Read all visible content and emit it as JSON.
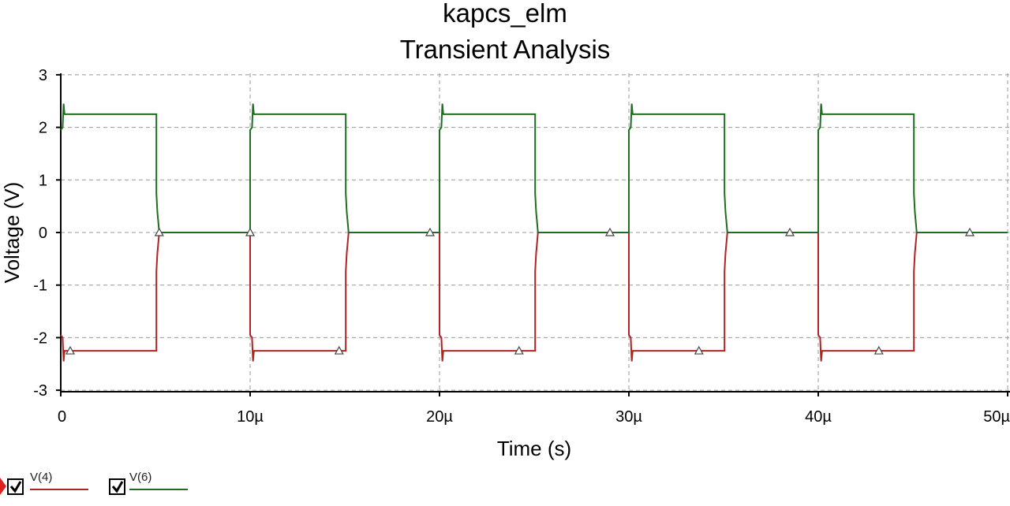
{
  "chart_data": {
    "type": "line",
    "title": "kapcs_elm",
    "subtitle": "Transient Analysis",
    "xlabel": "Time (s)",
    "ylabel": "Voltage (V)",
    "xlim": [
      0,
      50
    ],
    "x_unit": "µs",
    "ylim": [
      -3.2,
      3.2
    ],
    "xticks": [
      0,
      10,
      20,
      30,
      40,
      50
    ],
    "xtick_labels": [
      "0",
      "10µ",
      "20µ",
      "30µ",
      "40µ",
      "50µ"
    ],
    "yticks": [
      3,
      2,
      1,
      0,
      -1,
      -2,
      -3
    ],
    "ytick_labels": [
      "3",
      "2",
      "1",
      "0",
      "-1",
      "-2",
      "-3"
    ],
    "grid": true,
    "legend_placement": "bottom-left",
    "series": [
      {
        "name": "V(4)",
        "color": "#b22222",
        "checked": true,
        "points": [
          [
            0,
            -1.95
          ],
          [
            0.1,
            -2.0
          ],
          [
            0.15,
            -2.45
          ],
          [
            0.2,
            -2.25
          ],
          [
            5.05,
            -2.25
          ],
          [
            5.05,
            -0.75
          ],
          [
            5.1,
            -0.4
          ],
          [
            5.2,
            0
          ],
          [
            10,
            0
          ],
          [
            10,
            -1.95
          ],
          [
            10.1,
            -2.0
          ],
          [
            10.15,
            -2.45
          ],
          [
            10.2,
            -2.25
          ],
          [
            15.05,
            -2.25
          ],
          [
            15.05,
            -0.75
          ],
          [
            15.1,
            -0.4
          ],
          [
            15.2,
            0
          ],
          [
            20,
            0
          ],
          [
            20,
            -1.95
          ],
          [
            20.1,
            -2.0
          ],
          [
            20.15,
            -2.45
          ],
          [
            20.2,
            -2.25
          ],
          [
            25.05,
            -2.25
          ],
          [
            25.05,
            -0.75
          ],
          [
            25.1,
            -0.4
          ],
          [
            25.2,
            0
          ],
          [
            30,
            0
          ],
          [
            30,
            -1.95
          ],
          [
            30.1,
            -2.0
          ],
          [
            30.15,
            -2.45
          ],
          [
            30.2,
            -2.25
          ],
          [
            35.05,
            -2.25
          ],
          [
            35.05,
            -0.75
          ],
          [
            35.1,
            -0.4
          ],
          [
            35.2,
            0
          ],
          [
            40,
            0
          ],
          [
            40,
            -1.95
          ],
          [
            40.1,
            -2.0
          ],
          [
            40.15,
            -2.45
          ],
          [
            40.2,
            -2.25
          ],
          [
            45.05,
            -2.25
          ],
          [
            45.05,
            -0.75
          ],
          [
            45.1,
            -0.4
          ],
          [
            45.2,
            0
          ],
          [
            50,
            0
          ]
        ],
        "markers": [
          [
            0.5,
            -2.25
          ],
          [
            14.7,
            -2.25
          ],
          [
            24.2,
            -2.25
          ],
          [
            33.7,
            -2.25
          ],
          [
            43.2,
            -2.25
          ]
        ]
      },
      {
        "name": "V(6)",
        "color": "#1f6e1f",
        "checked": true,
        "points": [
          [
            0,
            1.95
          ],
          [
            0.1,
            2.0
          ],
          [
            0.15,
            2.45
          ],
          [
            0.2,
            2.25
          ],
          [
            5.05,
            2.25
          ],
          [
            5.05,
            0.75
          ],
          [
            5.1,
            0.4
          ],
          [
            5.2,
            0
          ],
          [
            10,
            0
          ],
          [
            10,
            1.95
          ],
          [
            10.1,
            2.0
          ],
          [
            10.15,
            2.45
          ],
          [
            10.2,
            2.25
          ],
          [
            15.05,
            2.25
          ],
          [
            15.05,
            0.75
          ],
          [
            15.1,
            0.4
          ],
          [
            15.2,
            0
          ],
          [
            20,
            0
          ],
          [
            20,
            1.95
          ],
          [
            20.1,
            2.0
          ],
          [
            20.15,
            2.45
          ],
          [
            20.2,
            2.25
          ],
          [
            25.05,
            2.25
          ],
          [
            25.05,
            0.75
          ],
          [
            25.1,
            0.4
          ],
          [
            25.2,
            0
          ],
          [
            30,
            0
          ],
          [
            30,
            1.95
          ],
          [
            30.1,
            2.0
          ],
          [
            30.15,
            2.45
          ],
          [
            30.2,
            2.25
          ],
          [
            35.05,
            2.25
          ],
          [
            35.05,
            0.75
          ],
          [
            35.1,
            0.4
          ],
          [
            35.2,
            0
          ],
          [
            40,
            0
          ],
          [
            40,
            1.95
          ],
          [
            40.1,
            2.0
          ],
          [
            40.15,
            2.45
          ],
          [
            40.2,
            2.25
          ],
          [
            45.05,
            2.25
          ],
          [
            45.05,
            0.75
          ],
          [
            45.1,
            0.4
          ],
          [
            45.2,
            0
          ],
          [
            50,
            0
          ]
        ],
        "markers": [
          [
            5.2,
            0
          ],
          [
            10.0,
            0
          ],
          [
            19.5,
            0
          ],
          [
            29.0,
            0
          ],
          [
            38.5,
            0
          ],
          [
            48.0,
            0
          ]
        ]
      }
    ]
  }
}
